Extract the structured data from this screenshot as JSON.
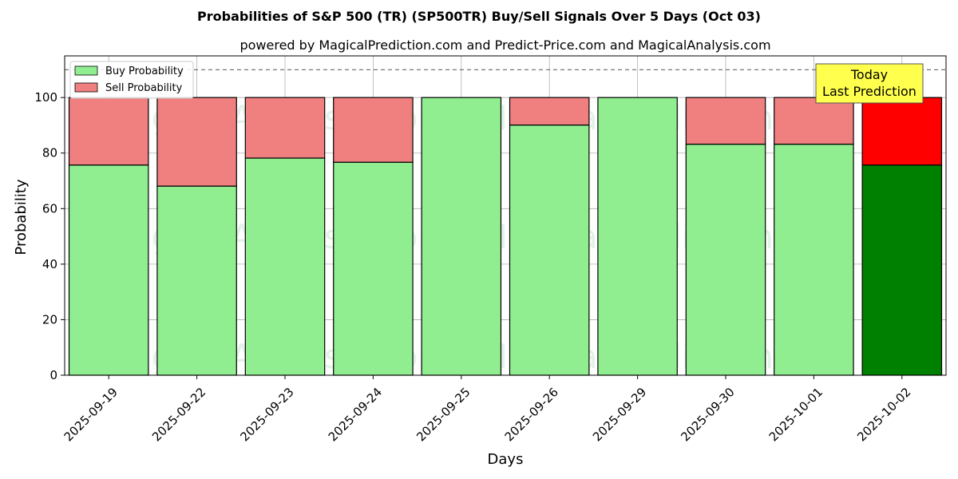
{
  "chart_data": {
    "type": "bar",
    "title": "Probabilities of S&P 500 (TR) (SP500TR) Buy/Sell Signals Over 5 Days (Oct 03)",
    "subtitle": "powered by MagicalPrediction.com and Predict-Price.com and MagicalAnalysis.com",
    "xlabel": "Days",
    "ylabel": "Probability",
    "ylim": [
      0,
      115
    ],
    "yticks": [
      0,
      20,
      40,
      60,
      80,
      100
    ],
    "grid": true,
    "stacked": true,
    "reference_line": 110,
    "categories": [
      "2025-09-19",
      "2025-09-22",
      "2025-09-23",
      "2025-09-24",
      "2025-09-25",
      "2025-09-26",
      "2025-09-29",
      "2025-09-30",
      "2025-10-01",
      "2025-10-02"
    ],
    "series": [
      {
        "name": "Buy Probability",
        "values": [
          75.7,
          68.1,
          78.2,
          76.7,
          100,
          90.1,
          100,
          83.2,
          83.2,
          75.7
        ],
        "color": "#90ee90",
        "last_color": "#008000"
      },
      {
        "name": "Sell Probability",
        "values": [
          24.3,
          31.9,
          21.8,
          23.3,
          0,
          9.9,
          0,
          16.8,
          16.8,
          24.3
        ],
        "color": "#f08080",
        "last_color": "#ff0000"
      }
    ],
    "legend_position": "top-left",
    "annotation": {
      "lines": [
        "Today",
        "Last Prediction"
      ],
      "background": "#ffff4d"
    },
    "watermarks": [
      "MagicalAnalysis.com",
      "MagicalPrediction.com"
    ]
  }
}
